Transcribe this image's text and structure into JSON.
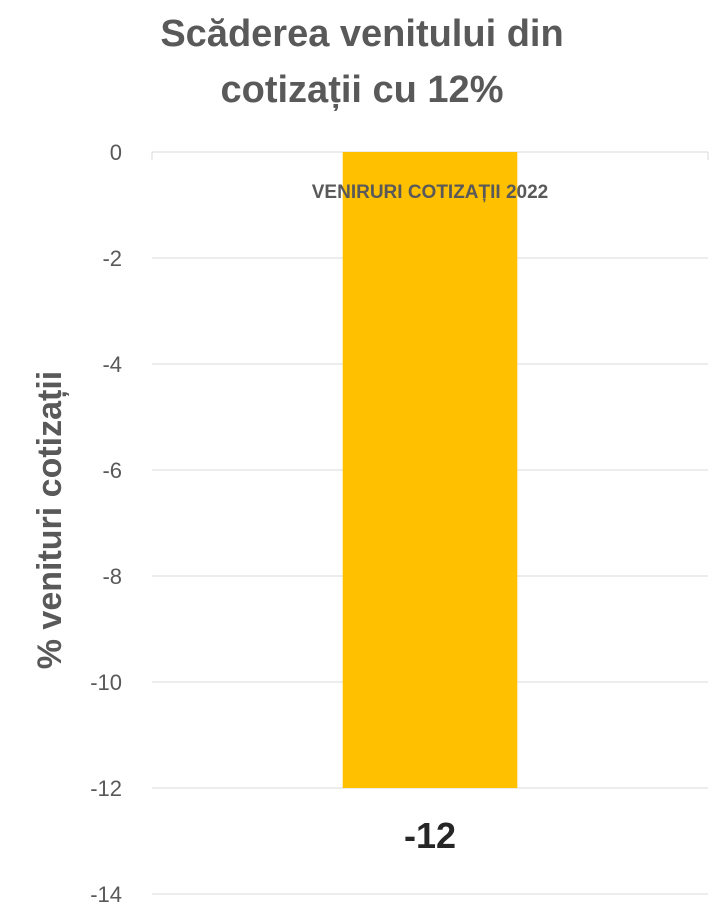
{
  "chart_data": {
    "type": "bar",
    "title": "Scăderea venitului din cotizații cu 12%",
    "title_lines": [
      "Scăderea venitului din",
      "cotizații cu 12%"
    ],
    "ylabel": "% venituri cotizații",
    "xlabel": "",
    "categories": [
      "VENIRURI COTIZAȚII 2022"
    ],
    "values": [
      -12
    ],
    "data_labels": [
      "-12"
    ],
    "ylim": [
      -14,
      0
    ],
    "yticks": [
      0,
      -2,
      -4,
      -6,
      -8,
      -10,
      -12,
      -14
    ],
    "ytick_labels": [
      "0",
      "-2",
      "-4",
      "-6",
      "-8",
      "-10",
      "-12",
      "-14"
    ],
    "grid": true,
    "legend": "none",
    "colors": {
      "bar": "#FFC000",
      "grid": "#D9D9D9",
      "text": "#595959",
      "data_label": "#262626"
    }
  }
}
